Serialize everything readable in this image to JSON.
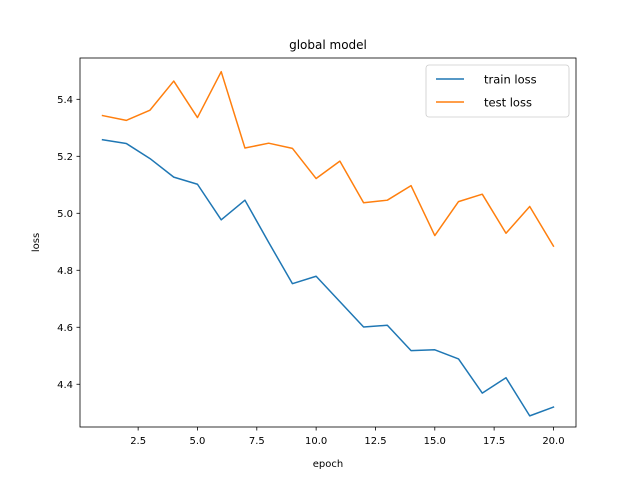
{
  "chart_data": {
    "type": "line",
    "title": "global model",
    "xlabel": "epoch",
    "ylabel": "loss",
    "xlim": [
      0.05,
      20.95
    ],
    "ylim": [
      4.25,
      5.545
    ],
    "xticks": [
      2.5,
      5.0,
      7.5,
      10.0,
      12.5,
      15.0,
      17.5,
      20.0
    ],
    "xtick_labels": [
      "2.5",
      "5.0",
      "7.5",
      "10.0",
      "12.5",
      "15.0",
      "17.5",
      "20.0"
    ],
    "yticks": [
      4.4,
      4.6,
      4.8,
      5.0,
      5.2,
      5.4
    ],
    "ytick_labels": [
      "4.4",
      "4.6",
      "4.8",
      "5.0",
      "5.2",
      "5.4"
    ],
    "grid": false,
    "legend_position": "top-right",
    "x": [
      1,
      2,
      3,
      4,
      5,
      6,
      7,
      8,
      9,
      10,
      11,
      12,
      13,
      14,
      15,
      16,
      17,
      18,
      19,
      20
    ],
    "series": [
      {
        "name": "train loss",
        "color": "#1f77b4",
        "values": [
          5.258,
          5.245,
          5.192,
          5.127,
          5.102,
          4.977,
          5.046,
          4.898,
          4.753,
          4.779,
          4.69,
          4.601,
          4.607,
          4.518,
          4.521,
          4.489,
          4.369,
          4.423,
          4.289,
          4.32
        ]
      },
      {
        "name": "test loss",
        "color": "#ff7f0e",
        "values": [
          5.343,
          5.326,
          5.362,
          5.464,
          5.336,
          5.497,
          5.229,
          5.246,
          5.228,
          5.122,
          5.183,
          5.037,
          5.046,
          5.097,
          4.922,
          5.041,
          5.067,
          4.93,
          5.024,
          4.885
        ]
      }
    ]
  }
}
